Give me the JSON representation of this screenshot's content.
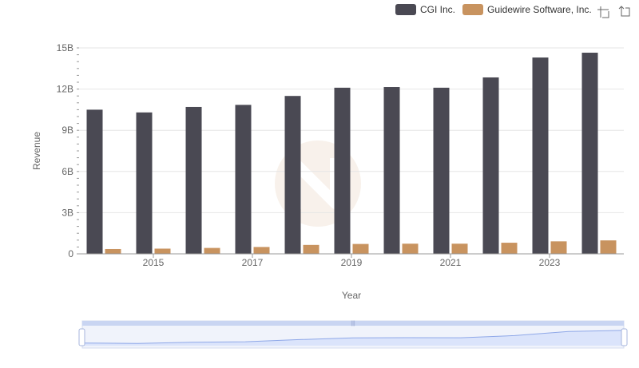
{
  "colors": {
    "series_0": "#4a4953",
    "series_1": "#c8935f",
    "grid": "#e6e6e6",
    "axis": "#999999",
    "zoom_fill": "#dbe4fb",
    "zoom_border": "#b5c4ec",
    "zoom_line": "#8fa8e8"
  },
  "toolbar": {
    "zoom_icon": "zoom-select-icon",
    "restore_icon": "restore-icon"
  },
  "chart_data": {
    "type": "bar",
    "title": "",
    "xlabel": "Year",
    "ylabel": "Revenue",
    "ylim": [
      0,
      15000000000
    ],
    "y_ticks": [
      {
        "value": 0,
        "label": "0"
      },
      {
        "value": 3000000000,
        "label": "3B"
      },
      {
        "value": 6000000000,
        "label": "6B"
      },
      {
        "value": 9000000000,
        "label": "9B"
      },
      {
        "value": 12000000000,
        "label": "12B"
      },
      {
        "value": 15000000000,
        "label": "15B"
      }
    ],
    "categories": [
      "2014",
      "2015",
      "2016",
      "2017",
      "2018",
      "2019",
      "2020",
      "2021",
      "2022",
      "2023",
      "2024"
    ],
    "x_tick_labels": [
      "2015",
      "2017",
      "2019",
      "2021",
      "2023"
    ],
    "grid": true,
    "legend_position": "top-right",
    "series": [
      {
        "name": "CGI Inc.",
        "values": [
          10500000000,
          10300000000,
          10700000000,
          10850000000,
          11500000000,
          12100000000,
          12150000000,
          12100000000,
          12850000000,
          14300000000,
          14650000000
        ]
      },
      {
        "name": "Guidewire Software, Inc.",
        "values": [
          350000000,
          380000000,
          430000000,
          500000000,
          650000000,
          720000000,
          740000000,
          740000000,
          810000000,
          910000000,
          980000000
        ]
      }
    ]
  }
}
